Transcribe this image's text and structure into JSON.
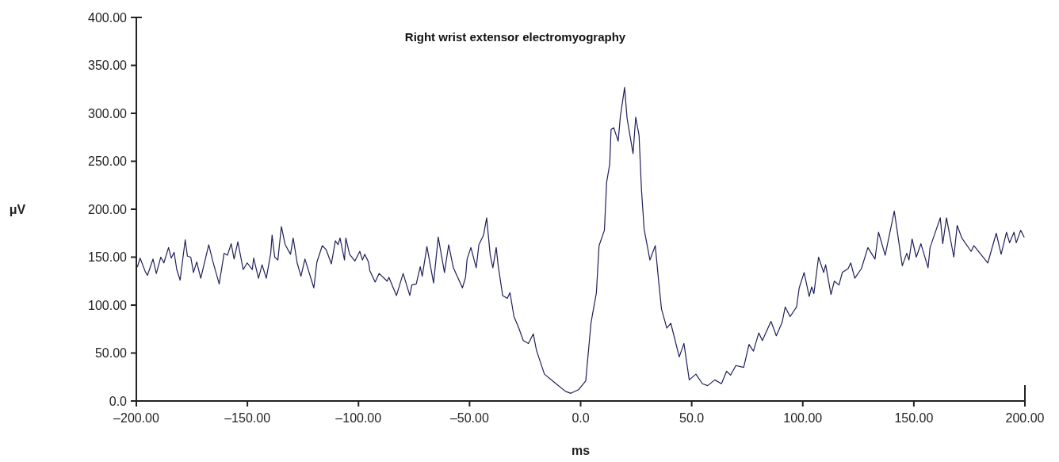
{
  "chart_data": {
    "type": "line",
    "title": "Right wrist extensor electromyography",
    "xlabel": "ms",
    "ylabel": "μV",
    "xlim": [
      -200,
      200
    ],
    "ylim": [
      0,
      400
    ],
    "xticks": [
      {
        "value": -200,
        "label": "–200.00"
      },
      {
        "value": -150,
        "label": "–150.00"
      },
      {
        "value": -100,
        "label": "–100.00"
      },
      {
        "value": -50,
        "label": "–50.00"
      },
      {
        "value": 0,
        "label": "0.0"
      },
      {
        "value": 50,
        "label": "50.0"
      },
      {
        "value": 100,
        "label": "100.00"
      },
      {
        "value": 150,
        "label": "150.00"
      },
      {
        "value": 200,
        "label": "200.00"
      }
    ],
    "yticks": [
      {
        "value": 0,
        "label": "0.0"
      },
      {
        "value": 50,
        "label": "50.00"
      },
      {
        "value": 100,
        "label": "100.00"
      },
      {
        "value": 150,
        "label": "150.00"
      },
      {
        "value": 200,
        "label": "200.00"
      },
      {
        "value": 250,
        "label": "250.00"
      },
      {
        "value": 300,
        "label": "300.00"
      },
      {
        "value": 350,
        "label": "350.00"
      },
      {
        "value": 400,
        "label": "400.00"
      }
    ],
    "grid": false,
    "marker": "none",
    "line_style": "solid",
    "series": [
      {
        "color": "#1f1f5c",
        "x": [
          -199.5,
          -198.3,
          -196,
          -195,
          -192.5,
          -191,
          -189,
          -187.6,
          -185.5,
          -184.3,
          -183,
          -181.8,
          -180.3,
          -178,
          -177,
          -175.5,
          -174.3,
          -172.8,
          -171,
          -167.4,
          -165.6,
          -162.7,
          -160.5,
          -159,
          -157.3,
          -156,
          -154.3,
          -151.9,
          -150.1,
          -147.8,
          -147.2,
          -145,
          -143.4,
          -141.5,
          -139.5,
          -138.9,
          -137.7,
          -136.3,
          -134.7,
          -133,
          -130.6,
          -129.4,
          -127.6,
          -125.9,
          -124.1,
          -120.1,
          -118.7,
          -116.3,
          -114.6,
          -112.2,
          -110.4,
          -109.2,
          -108.3,
          -106.3,
          -105.7,
          -104,
          -101.6,
          -99.4,
          -98.2,
          -97.2,
          -95.5,
          -94.9,
          -92.5,
          -90.7,
          -87.1,
          -86.3,
          -82.9,
          -79.9,
          -76.9,
          -76,
          -74,
          -72.2,
          -71.3,
          -69.2,
          -66.2,
          -64.1,
          -61.3,
          -59.4,
          -57.3,
          -53.2,
          -51.8,
          -51.1,
          -49.4,
          -47,
          -45.8,
          -43.7,
          -42.3,
          -40.7,
          -39.5,
          -38,
          -37.1,
          -35.1,
          -33,
          -31.8,
          -30,
          -28,
          -25.8,
          -23.5,
          -21.3,
          -19.9,
          -16.3,
          -11.6,
          -6.8,
          -4.4,
          -0.8,
          2.3,
          4.7,
          7.1,
          8.3,
          10.7,
          11.7,
          13.1,
          13.7,
          14.9,
          16.9,
          17.9,
          19.8,
          20.9,
          23.6,
          24.8,
          26.3,
          27.4,
          28.6,
          31.2,
          33.6,
          35.2,
          36.4,
          38.8,
          40.6,
          44.4,
          46.5,
          48.9,
          51.9,
          54.8,
          57.2,
          60.4,
          63.4,
          65.7,
          67.5,
          69.9,
          73.4,
          75.8,
          77.8,
          80.2,
          81.8,
          85.7,
          88.1,
          90.7,
          92.1,
          94.3,
          97.2,
          98.4,
          100.6,
          102.9,
          104,
          105,
          107.1,
          109.4,
          110.3,
          112.7,
          114.2,
          116.3,
          117.8,
          120.4,
          121.6,
          123.4,
          126.4,
          129.3,
          132.5,
          134.1,
          137.1,
          141.2,
          144.8,
          146.8,
          147.8,
          149.2,
          151.1,
          153.2,
          156.4,
          157.3,
          161.9,
          163,
          164.7,
          168,
          169.5,
          171.6,
          175.8,
          177,
          183.3,
          187.1,
          189.3,
          191.7,
          193.1,
          195.1,
          196.1,
          198.1,
          199.6
        ],
        "values": [
          140,
          149,
          135,
          131,
          148,
          133,
          150,
          144,
          160,
          149,
          155,
          137,
          126,
          168,
          151,
          150,
          134,
          145,
          128,
          163,
          146,
          122,
          154,
          152,
          164,
          148,
          166,
          137,
          144,
          137,
          149,
          128,
          142,
          128,
          154,
          173,
          150,
          147,
          182,
          163,
          153,
          170,
          144,
          130,
          148,
          118,
          145,
          162,
          158,
          143,
          167,
          163,
          170,
          147,
          170,
          153,
          146,
          156,
          147,
          153,
          145,
          136,
          124,
          133,
          125,
          129,
          110,
          133,
          110,
          121,
          122,
          140,
          130,
          161,
          123,
          171,
          134,
          163,
          139,
          118,
          129,
          148,
          160,
          139,
          163,
          173,
          191,
          152,
          139,
          160,
          141,
          110,
          107,
          113,
          88,
          77,
          63,
          60,
          70,
          53,
          28,
          19,
          10,
          8,
          12,
          21,
          82,
          113,
          162,
          178,
          228,
          247,
          283,
          285,
          271,
          297,
          327,
          295,
          258,
          296,
          277,
          220,
          179,
          147,
          162,
          123,
          96,
          76,
          81,
          46,
          60,
          22,
          28,
          18,
          16,
          22,
          18,
          31,
          27,
          37,
          35,
          59,
          52,
          71,
          63,
          83,
          68,
          82,
          98,
          88,
          98,
          118,
          134,
          109,
          119,
          112,
          150,
          134,
          142,
          111,
          125,
          121,
          134,
          138,
          144,
          128,
          138,
          160,
          148,
          176,
          152,
          198,
          141,
          154,
          147,
          169,
          150,
          164,
          139,
          160,
          191,
          164,
          191,
          150,
          183,
          170,
          156,
          162,
          144,
          175,
          153,
          176,
          165,
          176,
          165,
          178,
          171
        ]
      }
    ]
  }
}
